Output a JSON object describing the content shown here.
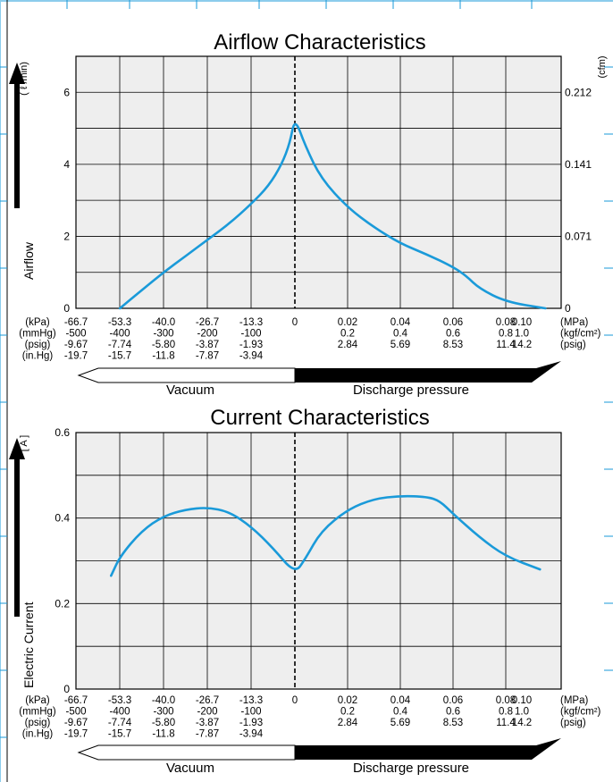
{
  "colors": {
    "curve": "#1a9ad9",
    "plot_bg": "#eeeeee",
    "grid": "#000000",
    "page_grid": "#1a9ad9"
  },
  "arrow_labels": {
    "vacuum": "Vacuum",
    "discharge": "Discharge pressure"
  },
  "row_units": [
    "(kPa)",
    "(mmHg)",
    "(psig)",
    "(in.Hg)"
  ],
  "right_units": [
    "(MPa)",
    "(kgf/cm²)",
    "(psig)"
  ],
  "vacuum_columns": [
    {
      "kpa": "-66.7",
      "mmhg": "-500",
      "psig": "-9.67",
      "inhg": "-19.7"
    },
    {
      "kpa": "-53.3",
      "mmhg": "-400",
      "psig": "-7.74",
      "inhg": "-15.7"
    },
    {
      "kpa": "-40.0",
      "mmhg": "-300",
      "psig": "-5.80",
      "inhg": "-11.8"
    },
    {
      "kpa": "-26.7",
      "mmhg": "-200",
      "psig": "-3.87",
      "inhg": "-7.87"
    },
    {
      "kpa": "-13.3",
      "mmhg": "-100",
      "psig": "-1.93",
      "inhg": "-3.94"
    }
  ],
  "zero_label": "0",
  "discharge_columns": [
    {
      "mpa": "0.02",
      "kgf": "0.2",
      "psig": "2.84"
    },
    {
      "mpa": "0.04",
      "kgf": "0.4",
      "psig": "5.69"
    },
    {
      "mpa": "0.06",
      "kgf": "0.6",
      "psig": "8.53"
    },
    {
      "mpa": "0.08",
      "kgf": "0.8",
      "psig": "11.4"
    },
    {
      "mpa": "0.10",
      "kgf": "1.0",
      "psig": "14.2"
    }
  ],
  "chart_data": [
    {
      "type": "line",
      "title": "Airflow Characteristics",
      "ylabel": "Airflow",
      "yunit_left": "( ℓ /min)",
      "yunit_right": "(cfm)",
      "x_unit_note": "x axis: pressure (vacuum side kPa, discharge side MPa); dashed line at 0",
      "ylim": [
        0,
        7
      ],
      "y_ticks": [
        0,
        2,
        4,
        6
      ],
      "y_tick_labels": [
        "0",
        "2",
        "4",
        "6"
      ],
      "y2_ticks": [
        0,
        2,
        4,
        6
      ],
      "y2_tick_labels": [
        "0",
        "0.071",
        "0.141",
        "0.212"
      ],
      "grid": true,
      "series": [
        {
          "points": [
            [
              -53.3,
              0.0
            ],
            [
              -46.7,
              0.5
            ],
            [
              -40.0,
              1.0
            ],
            [
              -33.3,
              1.45
            ],
            [
              -26.7,
              1.9
            ],
            [
              -20.0,
              2.35
            ],
            [
              -13.3,
              2.9
            ],
            [
              -8.0,
              3.4
            ],
            [
              -4.0,
              4.0
            ],
            [
              -1.5,
              4.6
            ],
            [
              0,
              5.3
            ],
            [
              0.004,
              4.5
            ],
            [
              0.01,
              3.6
            ],
            [
              0.02,
              2.8
            ],
            [
              0.03,
              2.25
            ],
            [
              0.04,
              1.8
            ],
            [
              0.05,
              1.5
            ],
            [
              0.06,
              1.15
            ],
            [
              0.065,
              0.9
            ],
            [
              0.07,
              0.55
            ],
            [
              0.08,
              0.18
            ],
            [
              0.095,
              0.0
            ]
          ]
        }
      ]
    },
    {
      "type": "line",
      "title": "Current Characteristics",
      "ylabel": "Electric Current",
      "yunit_left": "[ A ]",
      "ylim": [
        0,
        0.6
      ],
      "y_ticks": [
        0,
        0.2,
        0.4,
        0.6
      ],
      "y_tick_labels": [
        "0",
        "0.2",
        "0.4",
        "0.6"
      ],
      "grid": true,
      "series": [
        {
          "points": [
            [
              -56.0,
              0.265
            ],
            [
              -53.3,
              0.31
            ],
            [
              -46.7,
              0.37
            ],
            [
              -40.0,
              0.405
            ],
            [
              -33.3,
              0.42
            ],
            [
              -26.7,
              0.425
            ],
            [
              -20.0,
              0.415
            ],
            [
              -13.3,
              0.38
            ],
            [
              -6.7,
              0.33
            ],
            [
              0,
              0.27
            ],
            [
              0.004,
              0.305
            ],
            [
              0.01,
              0.37
            ],
            [
              0.02,
              0.42
            ],
            [
              0.03,
              0.445
            ],
            [
              0.04,
              0.452
            ],
            [
              0.05,
              0.45
            ],
            [
              0.055,
              0.44
            ],
            [
              0.06,
              0.41
            ],
            [
              0.07,
              0.355
            ],
            [
              0.08,
              0.31
            ],
            [
              0.093,
              0.28
            ]
          ]
        }
      ]
    }
  ]
}
